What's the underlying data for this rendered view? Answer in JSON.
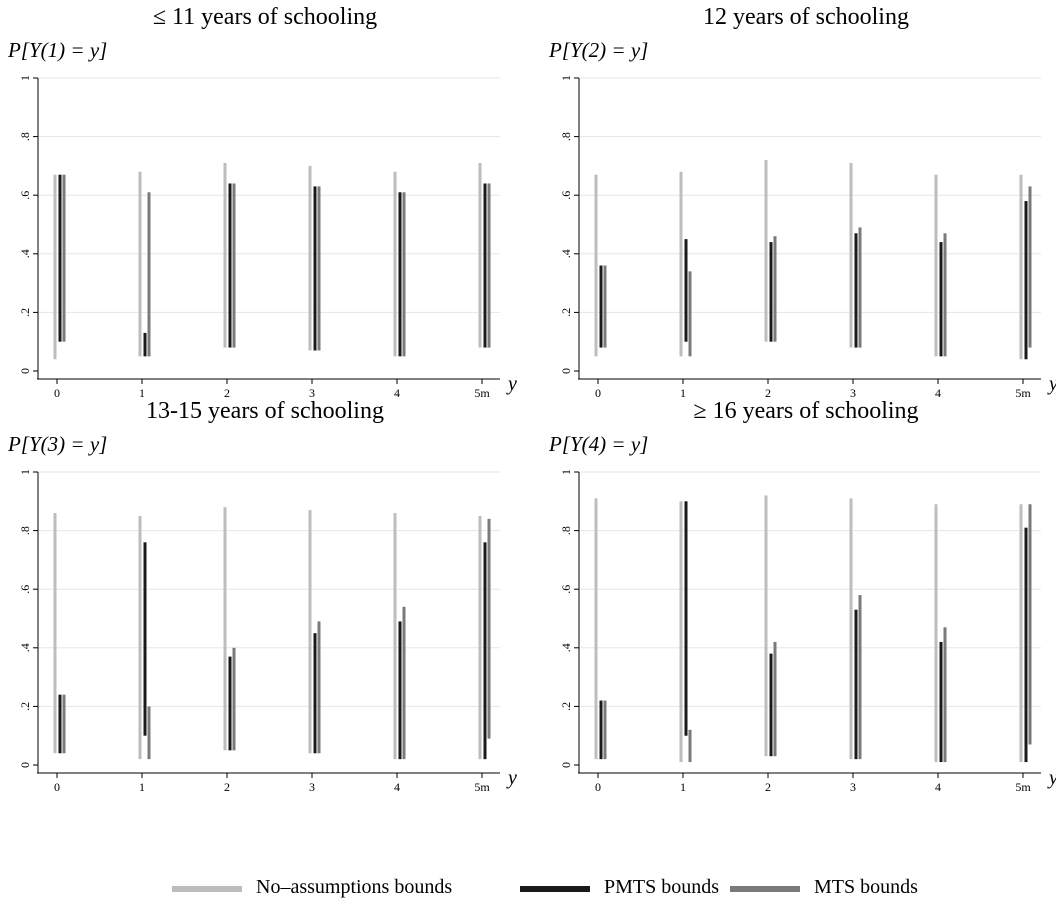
{
  "legend": {
    "items": [
      {
        "label": "No–assumptions bounds",
        "color": "#bdbdbd"
      },
      {
        "label": "PMTS bounds",
        "color": "#1a1a1a"
      },
      {
        "label": "MTS bounds",
        "color": "#7a7a7a"
      }
    ]
  },
  "chart_data": [
    {
      "type": "range-bar",
      "title": "≤ 11 years of schooling",
      "ylabel": "P[Y(1) = y]",
      "xlabel": "y",
      "categories": [
        "0",
        "1",
        "2",
        "3",
        "4",
        "5m"
      ],
      "yticks": [
        0,
        0.2,
        0.4,
        0.6,
        0.8,
        1
      ],
      "ytick_labels": [
        "0",
        ".2",
        ".4",
        ".6",
        ".8",
        "1"
      ],
      "ylim": [
        0,
        1
      ],
      "grid": true,
      "series": [
        {
          "name": "No–assumptions bounds",
          "ranges": [
            [
              0.04,
              0.67
            ],
            [
              0.05,
              0.68
            ],
            [
              0.08,
              0.71
            ],
            [
              0.07,
              0.7
            ],
            [
              0.05,
              0.68
            ],
            [
              0.08,
              0.71
            ]
          ]
        },
        {
          "name": "PMTS bounds",
          "ranges": [
            [
              0.1,
              0.67
            ],
            [
              0.05,
              0.13
            ],
            [
              0.08,
              0.64
            ],
            [
              0.07,
              0.63
            ],
            [
              0.05,
              0.61
            ],
            [
              0.08,
              0.64
            ]
          ]
        },
        {
          "name": "MTS bounds",
          "ranges": [
            [
              0.1,
              0.67
            ],
            [
              0.05,
              0.61
            ],
            [
              0.08,
              0.64
            ],
            [
              0.07,
              0.63
            ],
            [
              0.05,
              0.61
            ],
            [
              0.08,
              0.64
            ]
          ]
        }
      ]
    },
    {
      "type": "range-bar",
      "title": "12 years of schooling",
      "ylabel": "P[Y(2) = y]",
      "xlabel": "y",
      "categories": [
        "0",
        "1",
        "2",
        "3",
        "4",
        "5m"
      ],
      "yticks": [
        0,
        0.2,
        0.4,
        0.6,
        0.8,
        1
      ],
      "ytick_labels": [
        "0",
        ".2",
        ".4",
        ".6",
        ".8",
        "1"
      ],
      "ylim": [
        0,
        1
      ],
      "grid": true,
      "series": [
        {
          "name": "No–assumptions bounds",
          "ranges": [
            [
              0.05,
              0.67
            ],
            [
              0.05,
              0.68
            ],
            [
              0.1,
              0.72
            ],
            [
              0.08,
              0.71
            ],
            [
              0.05,
              0.67
            ],
            [
              0.04,
              0.67
            ]
          ]
        },
        {
          "name": "PMTS bounds",
          "ranges": [
            [
              0.08,
              0.36
            ],
            [
              0.1,
              0.45
            ],
            [
              0.1,
              0.44
            ],
            [
              0.08,
              0.47
            ],
            [
              0.05,
              0.44
            ],
            [
              0.04,
              0.58
            ]
          ]
        },
        {
          "name": "MTS bounds",
          "ranges": [
            [
              0.08,
              0.36
            ],
            [
              0.05,
              0.34
            ],
            [
              0.1,
              0.46
            ],
            [
              0.08,
              0.49
            ],
            [
              0.05,
              0.47
            ],
            [
              0.08,
              0.63
            ]
          ]
        }
      ]
    },
    {
      "type": "range-bar",
      "title": "13-15 years of schooling",
      "ylabel": "P[Y(3) = y]",
      "xlabel": "y",
      "categories": [
        "0",
        "1",
        "2",
        "3",
        "4",
        "5m"
      ],
      "yticks": [
        0,
        0.2,
        0.4,
        0.6,
        0.8,
        1
      ],
      "ytick_labels": [
        "0",
        ".2",
        ".4",
        ".6",
        ".8",
        "1"
      ],
      "ylim": [
        0,
        1
      ],
      "grid": true,
      "series": [
        {
          "name": "No–assumptions bounds",
          "ranges": [
            [
              0.04,
              0.86
            ],
            [
              0.02,
              0.85
            ],
            [
              0.05,
              0.88
            ],
            [
              0.04,
              0.87
            ],
            [
              0.02,
              0.86
            ],
            [
              0.02,
              0.85
            ]
          ]
        },
        {
          "name": "PMTS bounds",
          "ranges": [
            [
              0.04,
              0.24
            ],
            [
              0.1,
              0.76
            ],
            [
              0.05,
              0.37
            ],
            [
              0.04,
              0.45
            ],
            [
              0.02,
              0.49
            ],
            [
              0.02,
              0.76
            ]
          ]
        },
        {
          "name": "MTS bounds",
          "ranges": [
            [
              0.04,
              0.24
            ],
            [
              0.02,
              0.2
            ],
            [
              0.05,
              0.4
            ],
            [
              0.04,
              0.49
            ],
            [
              0.02,
              0.54
            ],
            [
              0.09,
              0.84
            ]
          ]
        }
      ]
    },
    {
      "type": "range-bar",
      "title": "≥ 16 years of schooling",
      "ylabel": "P[Y(4) = y]",
      "xlabel": "y",
      "categories": [
        "0",
        "1",
        "2",
        "3",
        "4",
        "5m"
      ],
      "yticks": [
        0,
        0.2,
        0.4,
        0.6,
        0.8,
        1
      ],
      "ytick_labels": [
        "0",
        ".2",
        ".4",
        ".6",
        ".8",
        "1"
      ],
      "ylim": [
        0,
        1
      ],
      "grid": true,
      "series": [
        {
          "name": "No–assumptions bounds",
          "ranges": [
            [
              0.02,
              0.91
            ],
            [
              0.01,
              0.9
            ],
            [
              0.03,
              0.92
            ],
            [
              0.02,
              0.91
            ],
            [
              0.01,
              0.89
            ],
            [
              0.01,
              0.89
            ]
          ]
        },
        {
          "name": "PMTS bounds",
          "ranges": [
            [
              0.02,
              0.22
            ],
            [
              0.1,
              0.9
            ],
            [
              0.03,
              0.38
            ],
            [
              0.02,
              0.53
            ],
            [
              0.01,
              0.42
            ],
            [
              0.01,
              0.81
            ]
          ]
        },
        {
          "name": "MTS bounds",
          "ranges": [
            [
              0.02,
              0.22
            ],
            [
              0.01,
              0.12
            ],
            [
              0.03,
              0.42
            ],
            [
              0.02,
              0.58
            ],
            [
              0.01,
              0.47
            ],
            [
              0.07,
              0.89
            ]
          ]
        }
      ]
    }
  ]
}
